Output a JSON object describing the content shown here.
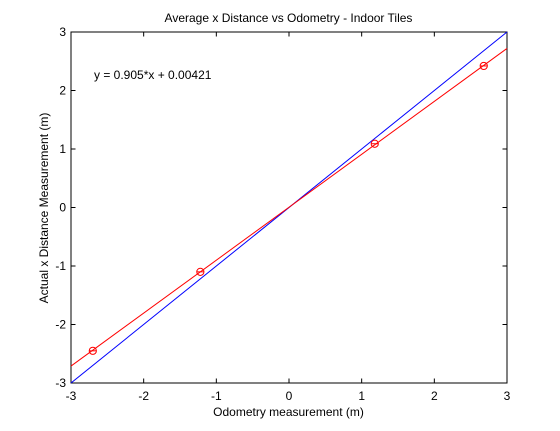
{
  "chart_data": {
    "type": "line",
    "title": "Average x Distance vs Odometry - Indoor Tiles",
    "xlabel": "Odometry measurement (m)",
    "ylabel": "Actual x Distance Measurement (m)",
    "xlim": [
      -3,
      3
    ],
    "ylim": [
      -3,
      3
    ],
    "xticks": [
      -3,
      -2,
      -1,
      0,
      1,
      2,
      3
    ],
    "yticks": [
      -3,
      -2,
      -1,
      0,
      1,
      2,
      3
    ],
    "xtick_labels": [
      "-3",
      "-2",
      "-1",
      "0",
      "1",
      "2",
      "3"
    ],
    "ytick_labels": [
      "-3",
      "-2",
      "-1",
      "0",
      "1",
      "2",
      "3"
    ],
    "grid": false,
    "annotation": "y = 0.905*x + 0.00421",
    "series": [
      {
        "kind": "line",
        "color": "#0000ff",
        "x": [
          -3,
          3
        ],
        "y": [
          -3,
          3
        ]
      },
      {
        "kind": "line",
        "color": "#ff0000",
        "x": [
          -3,
          3
        ],
        "y": [
          -2.71079,
          2.71921
        ]
      },
      {
        "kind": "scatter",
        "marker": "circle-with-bar",
        "color": "#ff0000",
        "x": [
          -2.7,
          -1.22,
          1.18,
          2.68
        ],
        "y": [
          -2.45,
          -1.1,
          1.09,
          2.42
        ]
      }
    ]
  }
}
